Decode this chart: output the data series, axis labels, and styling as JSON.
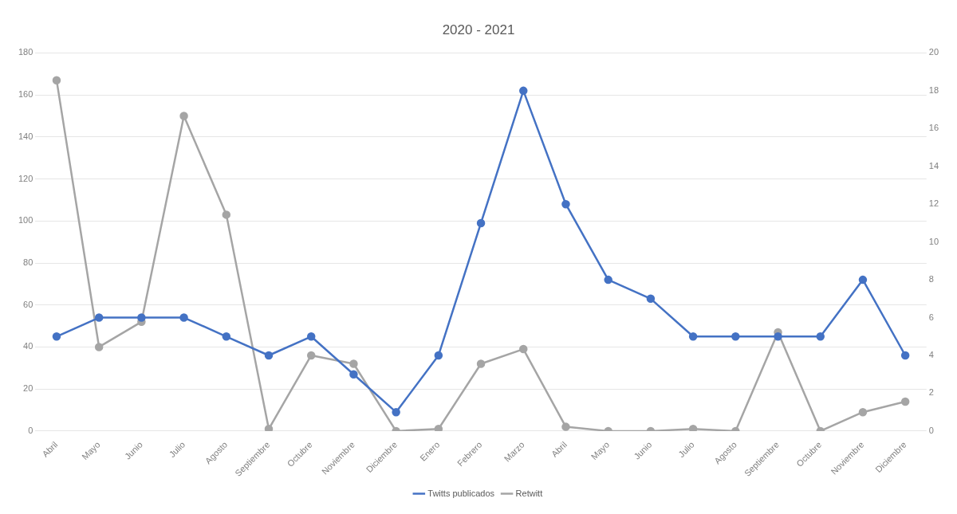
{
  "chart_data": {
    "type": "line",
    "title": "2020 - 2021",
    "categories": [
      "Abril",
      "Mayo",
      "Junio",
      "Julio",
      "Agosto",
      "Septiembre",
      "Octubre",
      "Noviembre",
      "Diciembre",
      "Enero",
      "Febrero",
      "Marzo",
      "Abril",
      "Mayo",
      "Junio",
      "Julio",
      "Agosto",
      "Septiembre",
      "Octubre",
      "Noviembre",
      "Diciembre"
    ],
    "series": [
      {
        "name": "Retwitt",
        "color": "#a5a5a5",
        "values": [
          167,
          40,
          52,
          150,
          103,
          1,
          36,
          32,
          0,
          1,
          32,
          39,
          2,
          0,
          0,
          1,
          0,
          47,
          0,
          9,
          14
        ]
      },
      {
        "name": "Twitts publicados",
        "color": "#4472c4",
        "axis": "y2",
        "values": [
          5,
          6,
          6,
          6,
          5,
          4,
          5,
          3,
          1,
          4,
          11,
          18,
          12,
          8,
          7,
          5,
          5,
          5,
          5,
          8,
          4
        ]
      }
    ],
    "ylim": [
      0,
      180
    ],
    "yticks": [
      0,
      20,
      40,
      60,
      80,
      100,
      120,
      140,
      160,
      180
    ],
    "y2lim": [
      0,
      20
    ],
    "y2ticks": [
      0,
      2,
      4,
      6,
      8,
      10,
      12,
      14,
      16,
      18,
      20
    ],
    "grid": "y",
    "legend": "bottom",
    "marker": "circle",
    "line_style": "solid"
  }
}
